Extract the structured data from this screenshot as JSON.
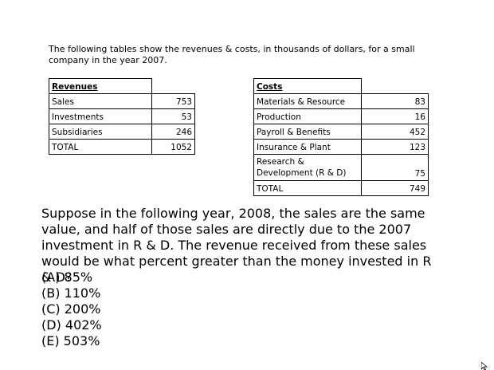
{
  "intro": "The following tables show the revenues & costs, in thousands of dollars, for a small company in the year 2007.",
  "revenues": {
    "title": "Revenues",
    "rows": [
      {
        "label": "Sales",
        "value": "753"
      },
      {
        "label": "Investments",
        "value": "53"
      },
      {
        "label": "Subsidiaries",
        "value": "246"
      },
      {
        "label": "TOTAL",
        "value": "1052"
      }
    ]
  },
  "costs": {
    "title": "Costs",
    "rows": [
      {
        "label": "Materials & Resource",
        "value": "83"
      },
      {
        "label": "Production",
        "value": "16"
      },
      {
        "label": "Payroll & Benefits",
        "value": "452"
      },
      {
        "label": "Insurance & Plant",
        "value": "123"
      },
      {
        "label": "Research & Development (R & D)",
        "value": "75"
      },
      {
        "label": "TOTAL",
        "value": "749"
      }
    ]
  },
  "question": "Suppose in the following year, 2008, the sales are the same value, and half of those sales are directly due to the 2007 investment in R & D. The revenue received from these sales would be what percent greater than the money invested in R & D?",
  "choices": [
    "(A)  85%",
    "(B) 110%",
    "(C) 200%",
    "(D) 402%",
    "(E) 503%"
  ]
}
